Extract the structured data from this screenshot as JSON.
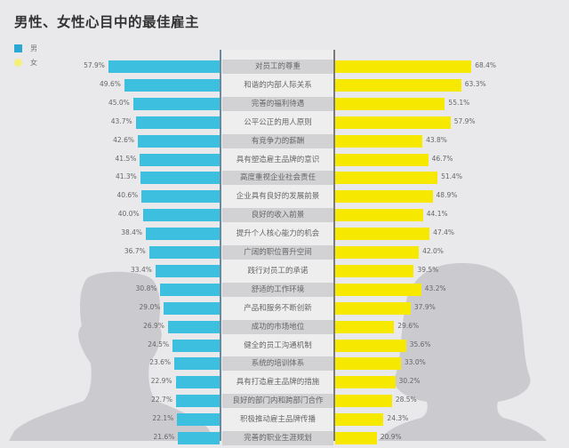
{
  "title": "男性、女性心目中的最佳雇主",
  "legend": [
    {
      "label": "男",
      "color": "#2aa8d4"
    },
    {
      "label": "女",
      "color": "#f4f07a"
    }
  ],
  "colors": {
    "male_bar": "#3dbfe0",
    "female_bar": "#f7e800",
    "background": "#e9e9ec",
    "silhouette": "#cbcbcf"
  },
  "chart_data": {
    "type": "bar",
    "orientation": "horizontal-butterfly",
    "title": "男性、女性心目中的最佳雇主",
    "xlabel": "",
    "ylabel": "",
    "legend_position": "top-left",
    "grid": false,
    "categories": [
      "对员工的尊重",
      "和谐的内部人际关系",
      "完善的福利待遇",
      "公平公正的用人原则",
      "有竞争力的薪酬",
      "具有塑造雇主品牌的意识",
      "高度重视企业社会责任",
      "企业具有良好的发展前景",
      "良好的收入前景",
      "提升个人核心能力的机会",
      "广阔的职位晋升空间",
      "践行对员工的承诺",
      "舒适的工作环境",
      "产品和服务不断创新",
      "成功的市场地位",
      "健全的员工沟通机制",
      "系统的培训体系",
      "具有打造雇主品牌的措施",
      "良好的部门内和跨部门合作",
      "积极推动雇主品牌传播",
      "完善的职业生涯规划"
    ],
    "series": [
      {
        "name": "男",
        "values": [
          57.9,
          49.6,
          45.0,
          43.7,
          42.6,
          41.5,
          41.3,
          40.6,
          40.0,
          38.4,
          36.7,
          33.4,
          30.8,
          29.0,
          26.9,
          24.5,
          23.6,
          22.9,
          22.7,
          22.1,
          21.6
        ],
        "labels": [
          "57.9%",
          "49.6%",
          "45.0%",
          "43.7%",
          "42.6%",
          "41.5%",
          "41.3%",
          "40.6%",
          "40.0%",
          "38.4%",
          "36.7%",
          "33.4%",
          "30.8%",
          "29.0%",
          "26.9%",
          "24.5%",
          "23.6%",
          "22.9%",
          "22.7%",
          "22.1%",
          "21.6%"
        ]
      },
      {
        "name": "女",
        "values": [
          68.4,
          63.3,
          55.1,
          57.9,
          43.8,
          46.7,
          51.4,
          48.9,
          44.1,
          47.4,
          42.0,
          39.5,
          43.2,
          37.9,
          29.6,
          35.6,
          33.0,
          30.2,
          28.5,
          24.3,
          20.9
        ],
        "labels": [
          "68.4%",
          "63.3%",
          "55.1%",
          "57.9%",
          "43.8%",
          "46.7%",
          "51.4%",
          "48.9%",
          "44.1%",
          "47.4%",
          "42.0%",
          "39.5%",
          "43.2%",
          "37.9%",
          "29.6%",
          "35.6%",
          "33.0%",
          "30.2%",
          "28.5%",
          "24.3%",
          "20.9%"
        ]
      }
    ]
  }
}
